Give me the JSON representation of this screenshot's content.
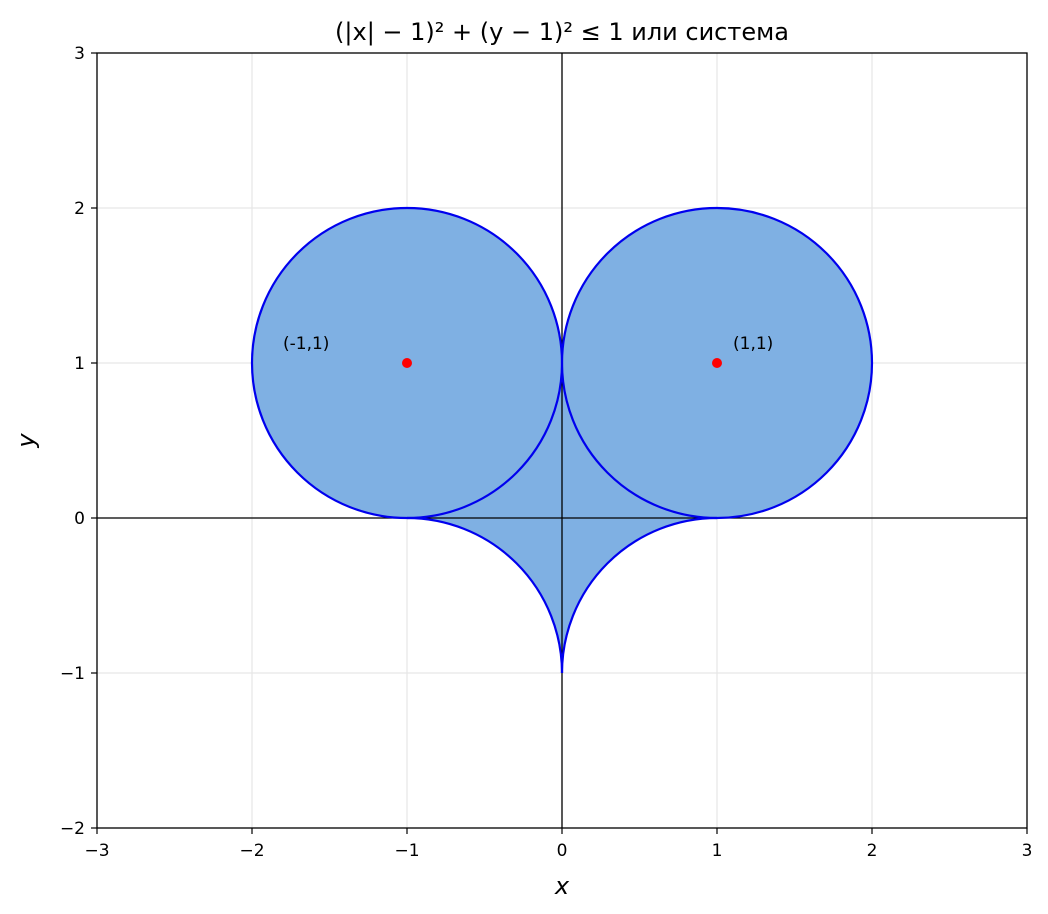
{
  "chart_data": {
    "type": "area",
    "title": "(|x| − 1)² + (y − 1)² ≤ 1 или система",
    "xlabel": "x",
    "ylabel": "y",
    "xlim": [
      -3,
      3
    ],
    "ylim": [
      -2,
      3
    ],
    "xticks": [
      -3,
      -2,
      -1,
      0,
      1,
      2,
      3
    ],
    "yticks": [
      -2,
      -1,
      0,
      1,
      2,
      3
    ],
    "xtick_labels": [
      "−3",
      "−2",
      "−1",
      "0",
      "1",
      "2",
      "3"
    ],
    "ytick_labels": [
      "−2",
      "−1",
      "0",
      "1",
      "2",
      "3"
    ],
    "grid": true,
    "circles": [
      {
        "cx": -1,
        "cy": 1,
        "r": 1
      },
      {
        "cx": 1,
        "cy": 1,
        "r": 1
      }
    ],
    "lower_arcs": [
      {
        "cx": -1,
        "cy": -1,
        "r": 1
      },
      {
        "cx": 1,
        "cy": -1,
        "r": 1
      }
    ],
    "points": [
      {
        "x": -1,
        "y": 1,
        "label": "(-1,1)",
        "label_side": "left"
      },
      {
        "x": 1,
        "y": 1,
        "label": "(1,1)",
        "label_side": "right"
      }
    ],
    "colors": {
      "fill": "#7fb0e3",
      "boundary": "#0000ee",
      "point": "#ff0000",
      "axes_lines": "#000000",
      "grid": "#e6e6e6"
    }
  }
}
